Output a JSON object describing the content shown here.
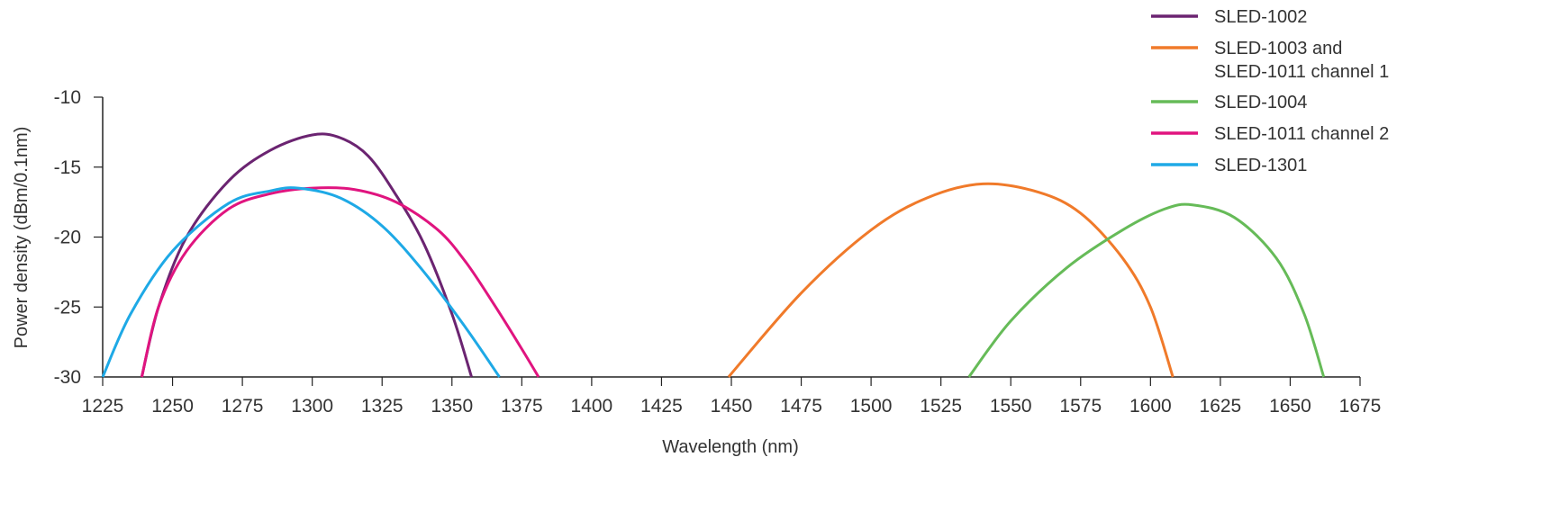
{
  "chart_data": {
    "type": "line",
    "title": "",
    "xlabel": "Wavelength (nm)",
    "ylabel": "Power density (dBm/0.1nm)",
    "xlim": [
      1225,
      1675
    ],
    "ylim": [
      -30,
      -10
    ],
    "x_ticks": [
      "1225",
      "1250",
      "1275",
      "1300",
      "1325",
      "1350",
      "1375",
      "1400",
      "1425",
      "1450",
      "1475",
      "1500",
      "1525",
      "1550",
      "1575",
      "1600",
      "1625",
      "1650",
      "1675"
    ],
    "y_ticks": [
      "-10",
      "-15",
      "-20",
      "-25",
      "-30"
    ],
    "grid": false,
    "legend_position": "top-right",
    "series": [
      {
        "name": "SLED-1002",
        "color": "#6b2471",
        "points": [
          [
            1239,
            -30
          ],
          [
            1245,
            -25
          ],
          [
            1255,
            -20
          ],
          [
            1270,
            -16
          ],
          [
            1285,
            -13.8
          ],
          [
            1300,
            -12.7
          ],
          [
            1310,
            -12.9
          ],
          [
            1320,
            -14.2
          ],
          [
            1330,
            -17
          ],
          [
            1340,
            -20.5
          ],
          [
            1350,
            -25.5
          ],
          [
            1357,
            -30
          ]
        ]
      },
      {
        "name": "SLED-1003 and SLED-1011 channel 1",
        "color": "#f07a2a",
        "points": [
          [
            1449,
            -30
          ],
          [
            1475,
            -24
          ],
          [
            1500,
            -19.5
          ],
          [
            1520,
            -17.2
          ],
          [
            1540,
            -16.2
          ],
          [
            1560,
            -16.8
          ],
          [
            1575,
            -18.3
          ],
          [
            1590,
            -21.5
          ],
          [
            1600,
            -25
          ],
          [
            1608,
            -30
          ]
        ]
      },
      {
        "name": "SLED-1004",
        "color": "#66bb58",
        "points": [
          [
            1535,
            -30
          ],
          [
            1550,
            -26
          ],
          [
            1570,
            -22.2
          ],
          [
            1590,
            -19.5
          ],
          [
            1605,
            -18
          ],
          [
            1615,
            -17.7
          ],
          [
            1630,
            -18.6
          ],
          [
            1645,
            -21.5
          ],
          [
            1655,
            -25.5
          ],
          [
            1662,
            -30
          ]
        ]
      },
      {
        "name": "SLED-1011 channel 2",
        "color": "#e0147f",
        "points": [
          [
            1239,
            -30
          ],
          [
            1245,
            -25
          ],
          [
            1255,
            -21
          ],
          [
            1270,
            -18
          ],
          [
            1285,
            -16.9
          ],
          [
            1300,
            -16.5
          ],
          [
            1315,
            -16.6
          ],
          [
            1330,
            -17.5
          ],
          [
            1345,
            -19.5
          ],
          [
            1355,
            -21.8
          ],
          [
            1365,
            -24.8
          ],
          [
            1375,
            -28
          ],
          [
            1381,
            -30
          ]
        ]
      },
      {
        "name": "SLED-1301",
        "color": "#1ea9e6",
        "points": [
          [
            1225,
            -30
          ],
          [
            1235,
            -25.5
          ],
          [
            1250,
            -21
          ],
          [
            1270,
            -17.6
          ],
          [
            1285,
            -16.7
          ],
          [
            1295,
            -16.5
          ],
          [
            1310,
            -17.2
          ],
          [
            1325,
            -19.2
          ],
          [
            1340,
            -22.5
          ],
          [
            1355,
            -26.5
          ],
          [
            1367,
            -30
          ]
        ]
      }
    ]
  }
}
